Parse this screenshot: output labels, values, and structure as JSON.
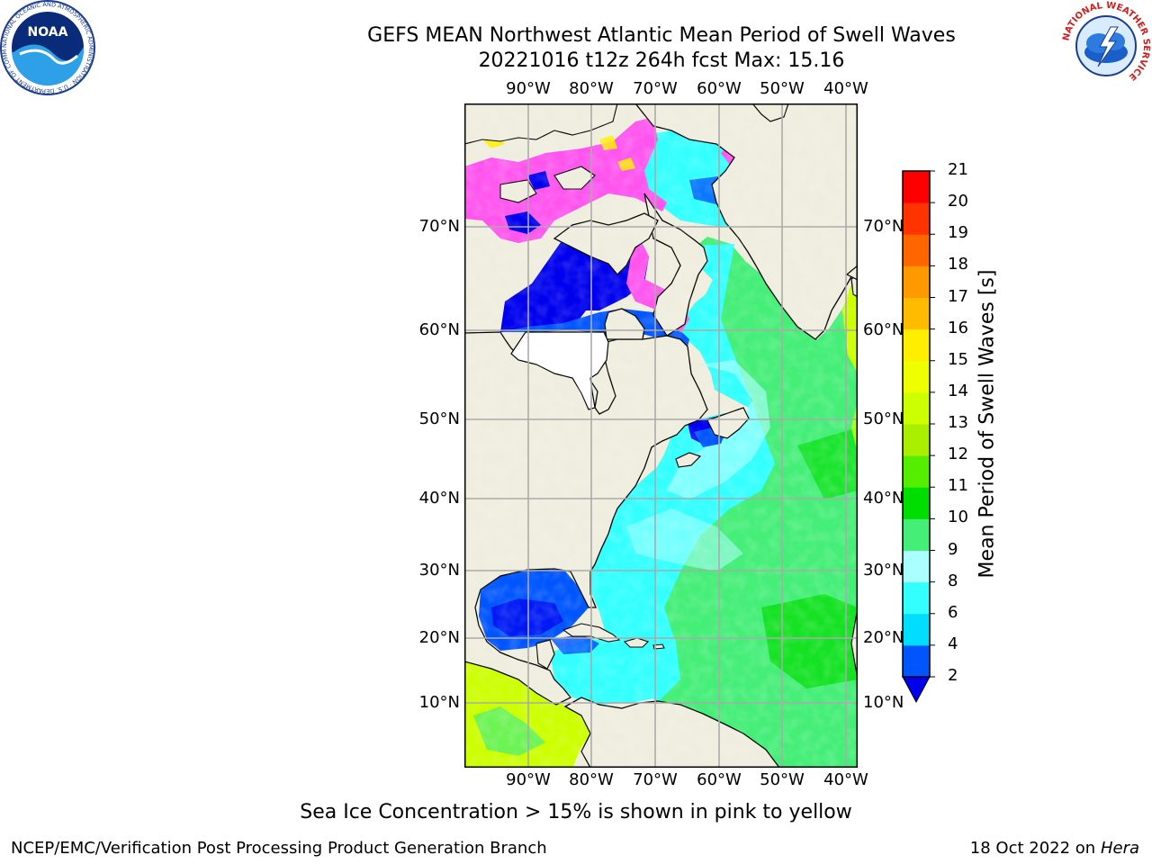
{
  "title_line1": "GEFS MEAN Northwest Atlantic Mean Period of Swell Waves",
  "title_line2": "20221016 t12z 264h fcst    Max: 15.16",
  "lon_labels": [
    "90°W",
    "80°W",
    "70°W",
    "60°W",
    "50°W",
    "40°W"
  ],
  "lat_labels": [
    "70°N",
    "60°N",
    "50°N",
    "40°N",
    "30°N",
    "20°N",
    "10°N"
  ],
  "colorbar": {
    "label": "Mean Period of Swell Waves [s]",
    "ticks": [
      "2",
      "4",
      "6",
      "8",
      "9",
      "10",
      "11",
      "12",
      "13",
      "14",
      "15",
      "16",
      "17",
      "18",
      "19",
      "20",
      "21"
    ],
    "colors": [
      "#0055ff",
      "#00ddff",
      "#33ffff",
      "#aaffff",
      "#44ee77",
      "#00dd00",
      "#55ee00",
      "#aaee00",
      "#ccff00",
      "#eeff00",
      "#ffee00",
      "#ffbb00",
      "#ff9900",
      "#ff6600",
      "#ff3300",
      "#ff0000"
    ],
    "under_color": "#0000ee"
  },
  "caption": "Sea Ice Concentration > 15% is shown in pink to yellow",
  "footer_left": "NCEP/EMC/Verification Post Processing Product Generation Branch",
  "footer_right_prefix": "18 Oct 2022 on ",
  "footer_right_host": "Hera",
  "logos": {
    "noaa_text": "NOAA",
    "noaa_ring_text": "NATIONAL OCEANIC AND ATMOSPHERIC ADMINISTRATION · U.S. DEPARTMENT OF COMMERCE",
    "nws_ring_text": "NATIONAL WEATHER SERVICE"
  },
  "map_colors": {
    "land": "#efedde",
    "ocean_short": "#33ffff",
    "ocean_mid": "#44ee77",
    "ocean_long": "#ccff00",
    "ice": "#ff55ee",
    "hudson_low": "#0000ee",
    "grid": "#aaaaaa"
  }
}
